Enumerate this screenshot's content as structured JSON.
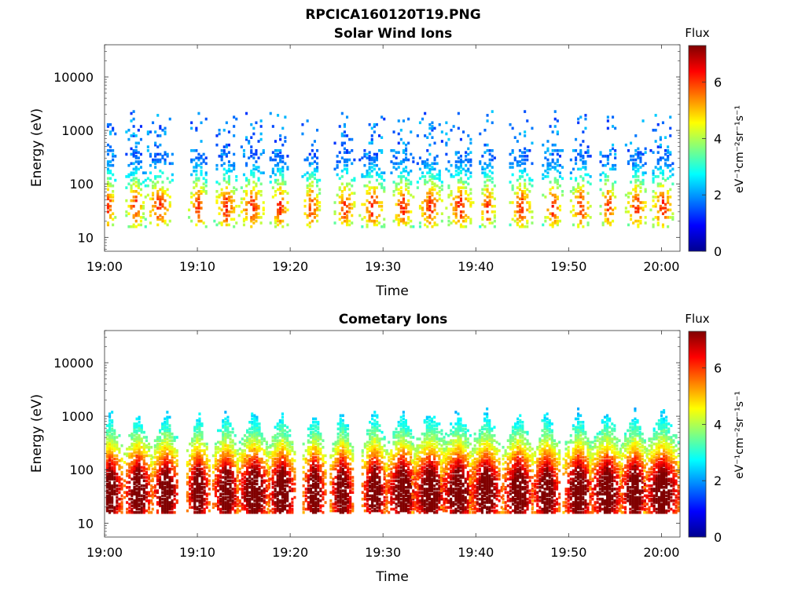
{
  "figure_title": "RPCICA160120T19.PNG",
  "colormap": [
    "#00008f",
    "#0000ff",
    "#0080ff",
    "#00ffff",
    "#80ff80",
    "#ffff00",
    "#ff8000",
    "#ff0000",
    "#800000"
  ],
  "chart_data": [
    {
      "type": "heatmap",
      "title": "Solar Wind Ions",
      "xlabel": "Time",
      "ylabel": "Energy (eV)",
      "x_range": [
        "19:00",
        "20:02"
      ],
      "x_ticks": [
        "19:00",
        "19:10",
        "19:20",
        "19:30",
        "19:40",
        "19:50",
        "20:00"
      ],
      "y_scale": "log",
      "ylim": [
        5.5,
        40000
      ],
      "y_ticks": [
        10,
        100,
        1000,
        10000
      ],
      "y_tick_labels": [
        "10",
        "100",
        "1000",
        "10000"
      ],
      "colorbar": {
        "label_top": "Flux",
        "units_label": "eV⁻¹cm⁻²sr⁻¹s⁻¹",
        "range": [
          0,
          7.3
        ],
        "ticks": [
          0,
          2,
          4,
          6
        ]
      },
      "bursts_minutes": [
        0.2,
        3.2,
        5.8,
        10.0,
        13.0,
        15.8,
        18.8,
        22.2,
        25.8,
        28.8,
        32.0,
        35.0,
        38.2,
        41.2,
        44.8,
        48.2,
        51.2,
        54.2,
        57.2,
        60.0
      ],
      "description_values": {
        "peak_energy_eV": 35,
        "peak_flux": 5.0,
        "max_energy_eV": 2500
      }
    },
    {
      "type": "heatmap",
      "title": "Cometary Ions",
      "xlabel": "Time",
      "ylabel": "Energy (eV)",
      "x_range": [
        "19:00",
        "20:02"
      ],
      "x_ticks": [
        "19:00",
        "19:10",
        "19:20",
        "19:30",
        "19:40",
        "19:50",
        "20:00"
      ],
      "y_scale": "log",
      "ylim": [
        5.5,
        40000
      ],
      "y_ticks": [
        10,
        100,
        1000,
        10000
      ],
      "y_tick_labels": [
        "10",
        "100",
        "1000",
        "10000"
      ],
      "colorbar": {
        "label_top": "Flux",
        "units_label": "eV⁻¹cm⁻²sr⁻¹s⁻¹",
        "range": [
          0,
          7.3
        ],
        "ticks": [
          0,
          2,
          4,
          6
        ]
      },
      "bursts_minutes": [
        0.5,
        3.5,
        6.5,
        10.0,
        13.0,
        16.0,
        19.0,
        22.5,
        25.5,
        29.0,
        32.0,
        35.0,
        38.0,
        41.0,
        44.5,
        47.5,
        51.0,
        54.0,
        57.0,
        60.0
      ],
      "description_values": {
        "peak_energy_eV": 35,
        "peak_flux": 6.8,
        "max_energy_eV": 1500
      }
    }
  ]
}
